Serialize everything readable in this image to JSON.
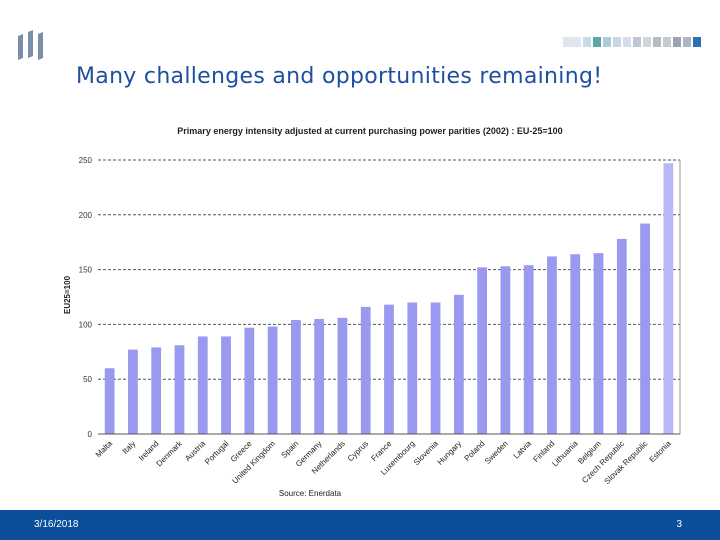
{
  "slide": {
    "title": "Many challenges and opportunities remaining!"
  },
  "footer": {
    "date": "3/16/2018",
    "page": "3"
  },
  "colors": {
    "bar": "#9999f0",
    "bar_highlight": "#b8b8f8",
    "title": "#1f4fa0",
    "footer": "#0b4f9b"
  },
  "chart_data": {
    "type": "bar",
    "title": "Primary energy intensity adjusted at current purchasing power parities (2002) : EU-25=100",
    "ylabel": "EU25=100",
    "source": "Source: Enerdata",
    "ylim": [
      0,
      250
    ],
    "yticks": [
      0,
      50,
      100,
      150,
      200,
      250
    ],
    "grid": "dashed",
    "categories": [
      "Malta",
      "Italy",
      "Ireland",
      "Denmark",
      "Austria",
      "Portugal",
      "Greece",
      "United Kingdom",
      "Spain",
      "Germany",
      "Netherlands",
      "Cyprus",
      "France",
      "Luxembourg",
      "Slovenia",
      "Hungary",
      "Poland",
      "Sweden",
      "Latvia",
      "Finland",
      "Lithuania",
      "Belgium",
      "Czech Republic",
      "Slovak Republic",
      "Estonia"
    ],
    "values": [
      60,
      77,
      79,
      81,
      89,
      89,
      97,
      98,
      104,
      105,
      106,
      116,
      118,
      120,
      120,
      127,
      152,
      153,
      154,
      162,
      164,
      165,
      178,
      192,
      247
    ]
  }
}
